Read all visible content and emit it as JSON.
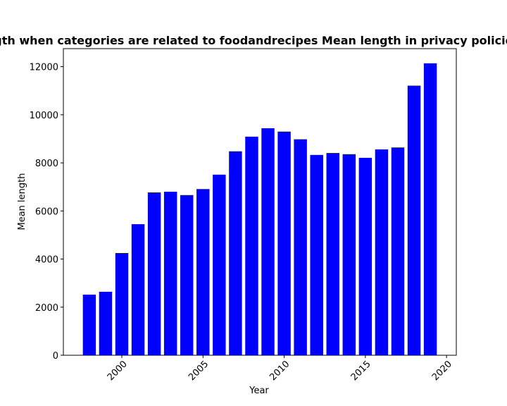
{
  "chart_data": {
    "type": "bar",
    "title": "Mean length when categories are related to foodandrecipes Mean length in privacy policies by year",
    "xlabel": "Year",
    "ylabel": "Mean length",
    "x": [
      1998,
      1999,
      2000,
      2001,
      2002,
      2003,
      2004,
      2005,
      2006,
      2007,
      2008,
      2009,
      2010,
      2011,
      2012,
      2013,
      2014,
      2015,
      2016,
      2017,
      2018,
      2019
    ],
    "values": [
      2520,
      2640,
      4250,
      5450,
      6770,
      6800,
      6660,
      6910,
      7510,
      8480,
      9090,
      9440,
      9300,
      8980,
      8330,
      8410,
      8360,
      8210,
      8560,
      8640,
      11210,
      12140
    ],
    "xlim": [
      1996.4,
      2020.6
    ],
    "ylim": [
      0,
      12750
    ],
    "x_ticks": [
      "2000",
      "2005",
      "2010",
      "2015",
      "2020"
    ],
    "y_ticks": [
      "0",
      "2000",
      "4000",
      "6000",
      "8000",
      "10000",
      "12000"
    ],
    "bar_color": "#0000ff",
    "grid": false,
    "legend": "none"
  }
}
